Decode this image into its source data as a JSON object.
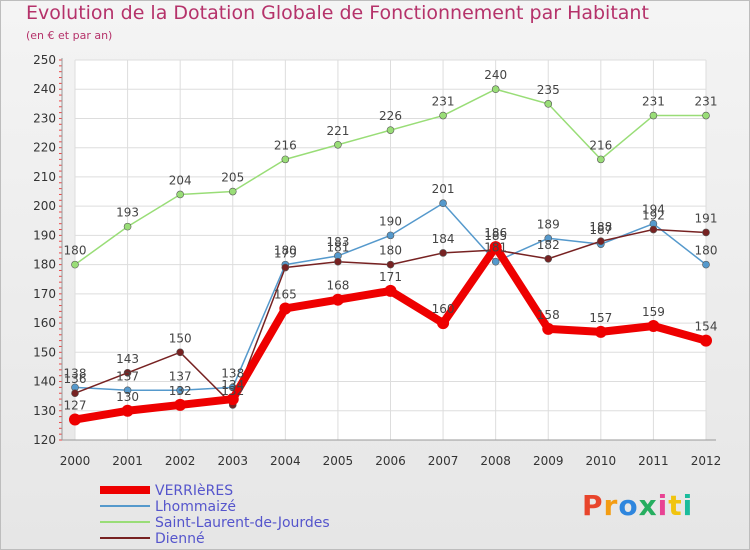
{
  "header": {
    "title": "Evolution de la Dotation Globale de Fonctionnement par Habitant",
    "subtitle": "(en € et par an)"
  },
  "logo": {
    "text": "Proxiti",
    "colors": [
      "#e8452c",
      "#f39c12",
      "#2e86de",
      "#27ae60",
      "#e84393",
      "#f1c40f",
      "#1abc9c"
    ]
  },
  "chart_data": {
    "type": "line",
    "categories": [
      "2000",
      "2001",
      "2002",
      "2003",
      "2004",
      "2005",
      "2006",
      "2007",
      "2008",
      "2009",
      "2010",
      "2011",
      "2012"
    ],
    "ylim": [
      120,
      250
    ],
    "yticks": [
      120,
      130,
      140,
      150,
      160,
      170,
      180,
      190,
      200,
      210,
      220,
      230,
      240,
      250
    ],
    "grid": true,
    "legend_position": "bottom-left",
    "series": [
      {
        "name": "Saint-Laurent-de-Jourdes",
        "color": "#99dd77",
        "values": [
          180,
          193,
          204,
          205,
          216,
          221,
          226,
          231,
          240,
          235,
          216,
          231,
          231
        ]
      },
      {
        "name": "Lhommaizé",
        "color": "#5599cc",
        "values": [
          138,
          137,
          137,
          138,
          180,
          183,
          190,
          201,
          181,
          189,
          187,
          194,
          180
        ]
      },
      {
        "name": "Dienné",
        "color": "#772222",
        "values": [
          136,
          143,
          150,
          132,
          179,
          181,
          180,
          184,
          185,
          182,
          188,
          192,
          191
        ]
      },
      {
        "name": "VERRIèRES",
        "color": "#ee0000",
        "values": [
          127,
          130,
          132,
          134,
          165,
          168,
          171,
          160,
          186,
          158,
          157,
          159,
          154
        ]
      }
    ],
    "legend_order": [
      "VERRIèRES",
      "Lhommaizé",
      "Saint-Laurent-de-Jourdes",
      "Dienné"
    ]
  }
}
